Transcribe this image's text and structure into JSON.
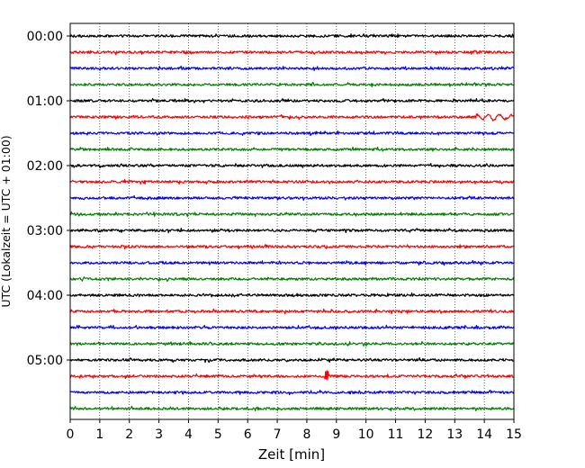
{
  "chart_data": {
    "type": "line",
    "title": "",
    "xlabel": "Zeit  [min]",
    "ylabel": "UTC (Lokalzeit = UTC + 01:00)",
    "xlim": [
      0,
      15
    ],
    "x_ticks": [
      0,
      1,
      2,
      3,
      4,
      5,
      6,
      7,
      8,
      9,
      10,
      11,
      12,
      13,
      14,
      15
    ],
    "y_ticks": [
      "00:00",
      "01:00",
      "02:00",
      "03:00",
      "04:00",
      "05:00"
    ],
    "trace_interval_min": 15,
    "trace_count": 24,
    "trace_start_times": [
      "00:00",
      "00:15",
      "00:30",
      "00:45",
      "01:00",
      "01:15",
      "01:30",
      "01:45",
      "02:00",
      "02:15",
      "02:30",
      "02:45",
      "03:00",
      "03:15",
      "03:30",
      "03:45",
      "04:00",
      "04:15",
      "04:30",
      "04:45",
      "05:00",
      "05:15",
      "05:30",
      "05:45"
    ],
    "trace_colors": [
      "#000000",
      "#ff0000",
      "#0000ff",
      "#008000"
    ],
    "grid": {
      "x": true,
      "style": "dotted",
      "y": false
    },
    "legend": "none"
  }
}
